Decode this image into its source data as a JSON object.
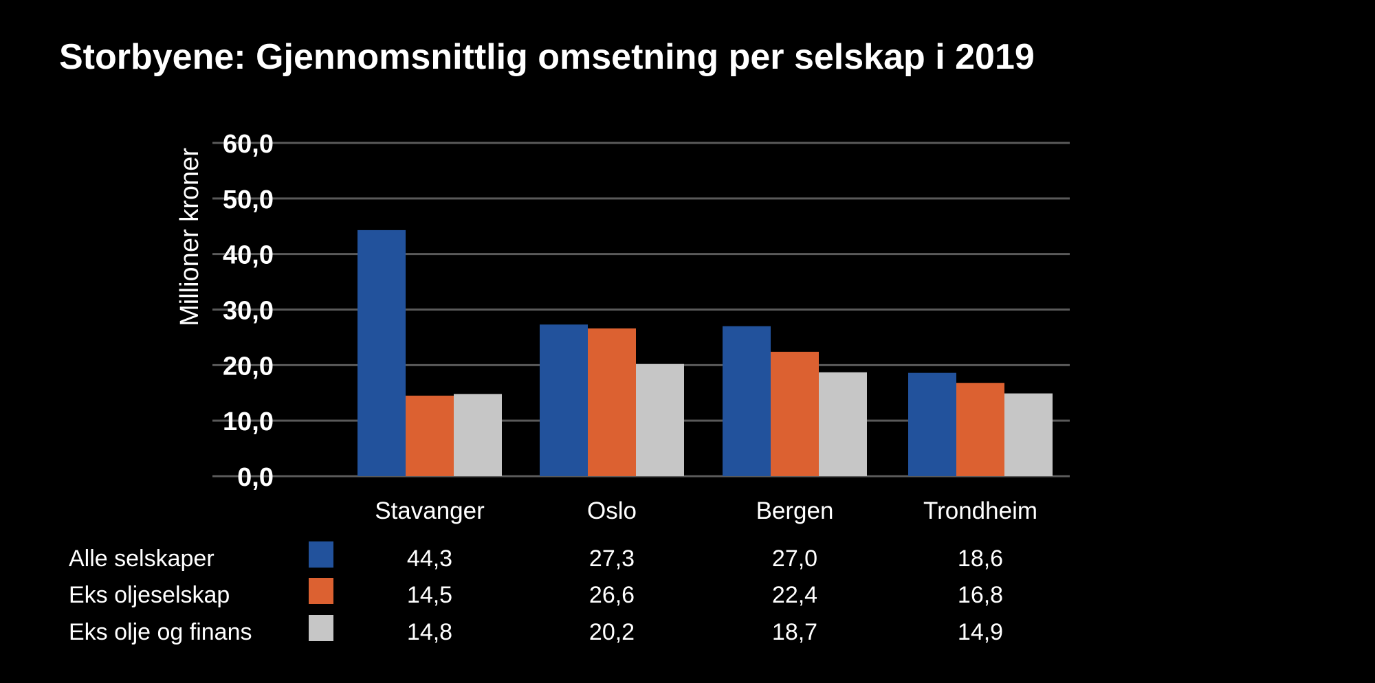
{
  "chart_data": {
    "type": "bar",
    "title": "Storbyene: Gjennomsnittlig omsetning per selskap i 2019",
    "xlabel": "",
    "ylabel": "Millioner kroner",
    "ylim": [
      0,
      60
    ],
    "yticks": [
      "0,0",
      "10,0",
      "20,0",
      "30,0",
      "40,0",
      "50,0",
      "60,0"
    ],
    "grid": true,
    "legend": "bottom-table",
    "categories": [
      "Stavanger",
      "Oslo",
      "Bergen",
      "Trondheim"
    ],
    "series": [
      {
        "name": "Alle selskaper",
        "color": "#22529c",
        "values": [
          44.3,
          27.3,
          27.0,
          18.6
        ],
        "labels": [
          "44,3",
          "27,3",
          "27,0",
          "18,6"
        ]
      },
      {
        "name": "Eks oljeselskap",
        "color": "#dc6131",
        "values": [
          14.5,
          26.6,
          22.4,
          16.8
        ],
        "labels": [
          "14,5",
          "26,6",
          "22,4",
          "16,8"
        ]
      },
      {
        "name": "Eks olje og finans",
        "color": "#c6c6c6",
        "values": [
          14.8,
          20.2,
          18.7,
          14.9
        ],
        "labels": [
          "14,8",
          "20,2",
          "18,7",
          "14,9"
        ]
      }
    ],
    "background": "#000000",
    "gridline_color": "#5a5a5a"
  }
}
